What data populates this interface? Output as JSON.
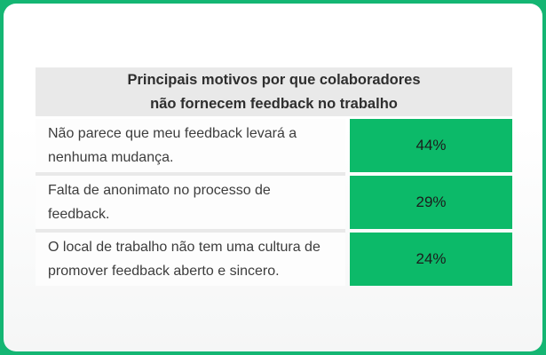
{
  "colors": {
    "background_green": "#14b673",
    "bar_green": "#0cba69",
    "header_gray": "#e9e9e9",
    "card_white": "#ffffff",
    "text_dark": "#3d3d3d"
  },
  "chart_data": {
    "type": "bar",
    "orientation": "horizontal",
    "title": "Principais motivos por que colaboradores não fornecem feedback no trabalho",
    "title_line1": "Principais motivos por que colaboradores",
    "title_line2": "não fornecem feedback no trabalho",
    "categories": [
      "Não parece que meu feedback levará a nenhuma mudança.",
      "Falta de anonimato no processo de feedback.",
      "O local de trabalho não tem uma cultura de promover feedback aberto e sincero."
    ],
    "values": [
      44,
      29,
      24
    ],
    "value_labels": [
      "44%",
      "29%",
      "24%"
    ],
    "legend": "none",
    "grid": false,
    "bars_equal_width": true
  },
  "table": {
    "rows": [
      {
        "label": "Não parece que meu feedback levará a nenhuma mudança.",
        "value": "44%"
      },
      {
        "label": "Falta de anonimato no processo de feedback.",
        "value": "29%"
      },
      {
        "label": "O local de trabalho não tem uma cultura de promover feedback aberto e sincero.",
        "value": "24%"
      }
    ]
  }
}
